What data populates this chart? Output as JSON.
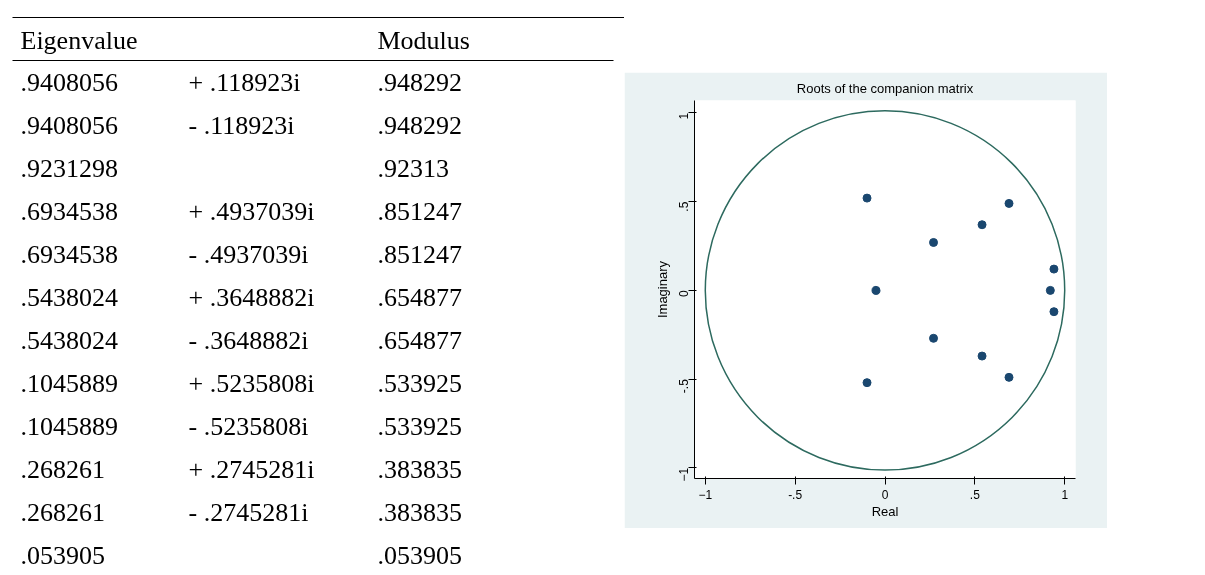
{
  "chart_data": [
    {
      "type": "other",
      "annotations": [
        "Eigenvalue",
        "Modulus",
        ".9408056 +  .118923i",
        ".948292",
        ".9408056 -  .118923i",
        ".948292",
        ".9231298",
        ".92313",
        ".6934538 + .4937039i",
        ".851247",
        ".6934538 - .4937039i",
        ".851247",
        ".5438024 + .3648882i",
        ".654877",
        ".5438024 - .3648882i",
        ".654877",
        ".1045889 + .5235808i",
        ".533925",
        ".1045889 - .5235808i",
        ".533925",
        ".268261 + .2745281i",
        ".383835",
        ".268261 - .2745281i",
        ".383835",
        ".053905",
        ".053905"
      ]
    },
    {
      "type": "scatter",
      "title": "Roots of the companion matrix",
      "xlabel": "Real",
      "ylabel": "Imaginary",
      "marker": "circle",
      "series": [
        {
          "type": "scatter",
          "color": "#1a476f",
          "x": [
            0.94,
            0.94,
            0.92,
            0.69,
            0.69,
            0.54,
            0.54,
            -0.1,
            -0.1,
            0.27,
            0.27,
            -0.05
          ],
          "values": [
            0.12,
            -0.12,
            0,
            0.49,
            -0.49,
            0.37,
            -0.37,
            0.52,
            -0.52,
            0.27,
            -0.27,
            0
          ]
        }
      ],
      "xlim": [
        -1.06,
        1.06
      ],
      "ylim": [
        -1.06,
        1.07
      ],
      "xticks": [
        -1,
        {
          "value": -0.5,
          "label": "-.5"
        },
        0,
        {
          "value": 0.5,
          "label": ".5"
        },
        1
      ],
      "yticks": [
        -1,
        {
          "value": -0.5,
          "label": "-.5"
        },
        0,
        {
          "value": 0.5,
          "label": ".5"
        },
        1
      ]
    }
  ]
}
